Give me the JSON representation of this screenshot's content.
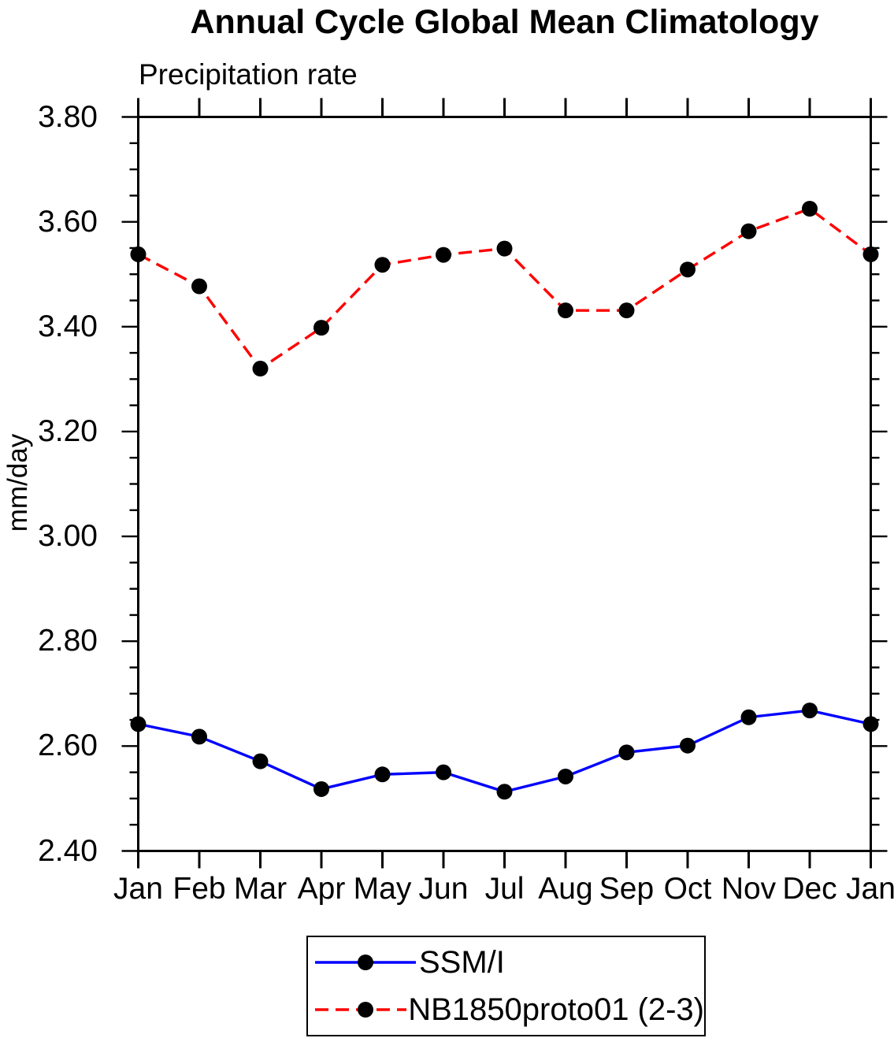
{
  "chart_data": {
    "type": "line",
    "title": "Annual Cycle Global Mean Climatology",
    "subtitle": "Precipitation rate",
    "ylabel": "mm/day",
    "categories": [
      "Jan",
      "Feb",
      "Mar",
      "Apr",
      "May",
      "Jun",
      "Jul",
      "Aug",
      "Sep",
      "Oct",
      "Nov",
      "Dec",
      "Jan"
    ],
    "ylim": [
      2.4,
      3.8
    ],
    "ytick_interval": 0.2,
    "yminor_interval": 0.05,
    "ytick_labels": [
      "2.40",
      "2.60",
      "2.80",
      "3.00",
      "3.20",
      "3.40",
      "3.60",
      "3.80"
    ],
    "grid": false,
    "legend_position": "bottom-center",
    "axis_color": "#000000",
    "marker_color": "#000000",
    "background_color": "#ffffff",
    "series": [
      {
        "name": "SSM/I",
        "color": "#0000ff",
        "line_style": "solid",
        "marker": "filled-circle",
        "values": [
          2.642,
          2.618,
          2.571,
          2.518,
          2.546,
          2.55,
          2.513,
          2.542,
          2.588,
          2.601,
          2.655,
          2.668,
          2.642
        ]
      },
      {
        "name": "NB1850proto01 (2-3)",
        "color": "#ff0000",
        "line_style": "dashed",
        "marker": "filled-circle",
        "values": [
          3.538,
          3.477,
          3.32,
          3.398,
          3.518,
          3.537,
          3.549,
          3.431,
          3.431,
          3.509,
          3.582,
          3.625,
          3.538
        ]
      }
    ]
  }
}
